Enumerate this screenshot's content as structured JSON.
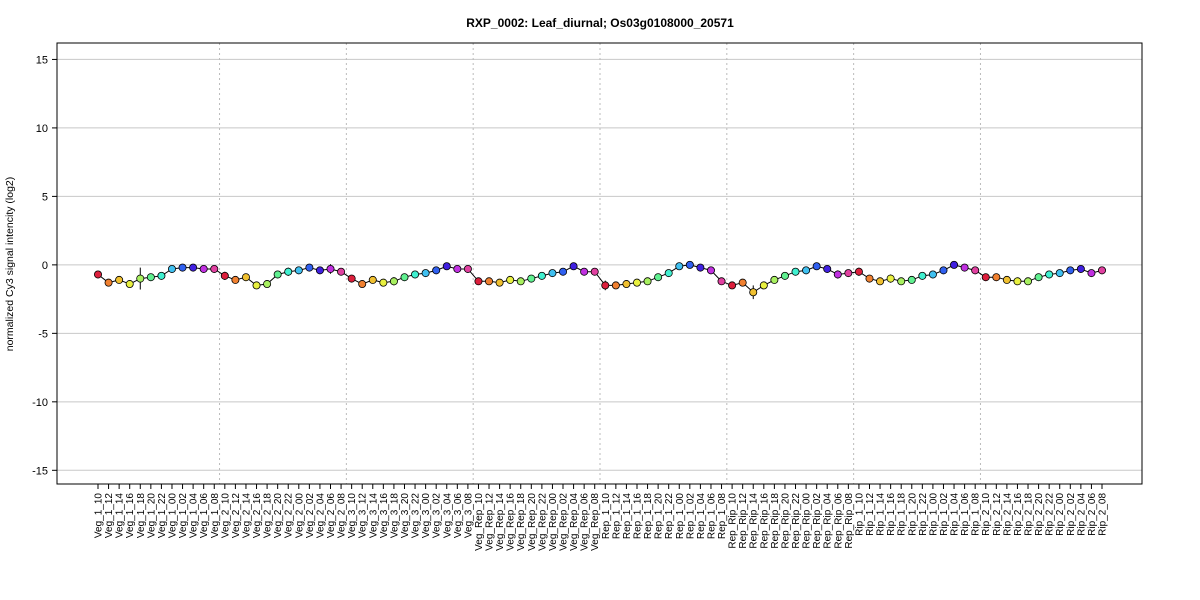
{
  "chart_data": {
    "type": "line",
    "title": "RXP_0002: Leaf_diurnal; Os03g0108000_20571",
    "ylabel": "normalized Cy3 signal intencity (log2)",
    "xlabel": "",
    "ylim": [
      -16,
      16.2
    ],
    "yticks": [
      -15,
      -10,
      -5,
      0,
      5,
      10,
      15
    ],
    "grid": true,
    "legend": "none",
    "categories": [
      "Veg_1_10",
      "Veg_1_12",
      "Veg_1_14",
      "Veg_1_16",
      "Veg_1_18",
      "Veg_1_20",
      "Veg_1_22",
      "Veg_1_00",
      "Veg_1_02",
      "Veg_1_04",
      "Veg_1_06",
      "Veg_1_08",
      "Veg_2_10",
      "Veg_2_12",
      "Veg_2_14",
      "Veg_2_16",
      "Veg_2_18",
      "Veg_2_20",
      "Veg_2_22",
      "Veg_2_00",
      "Veg_2_02",
      "Veg_2_04",
      "Veg_2_06",
      "Veg_2_08",
      "Veg_3_10",
      "Veg_3_12",
      "Veg_3_14",
      "Veg_3_16",
      "Veg_3_18",
      "Veg_3_20",
      "Veg_3_22",
      "Veg_3_00",
      "Veg_3_02",
      "Veg_3_04",
      "Veg_3_06",
      "Veg_3_08",
      "Veg_Rep_10",
      "Veg_Rep_12",
      "Veg_Rep_14",
      "Veg_Rep_16",
      "Veg_Rep_18",
      "Veg_Rep_20",
      "Veg_Rep_22",
      "Veg_Rep_00",
      "Veg_Rep_02",
      "Veg_Rep_04",
      "Veg_Rep_06",
      "Veg_Rep_08",
      "Rep_1_10",
      "Rep_1_12",
      "Rep_1_14",
      "Rep_1_16",
      "Rep_1_18",
      "Rep_1_20",
      "Rep_1_22",
      "Rep_1_00",
      "Rep_1_02",
      "Rep_1_04",
      "Rep_1_06",
      "Rep_1_08",
      "Rep_Rip_10",
      "Rep_Rip_12",
      "Rep_Rip_14",
      "Rep_Rip_16",
      "Rep_Rip_18",
      "Rep_Rip_20",
      "Rep_Rip_22",
      "Rep_Rip_00",
      "Rep_Rip_02",
      "Rep_Rip_04",
      "Rep_Rip_06",
      "Rep_Rip_08",
      "Rip_1_10",
      "Rip_1_12",
      "Rip_1_14",
      "Rip_1_16",
      "Rip_1_18",
      "Rip_1_20",
      "Rip_1_22",
      "Rip_1_00",
      "Rip_1_02",
      "Rip_1_04",
      "Rip_1_06",
      "Rip_1_08",
      "Rip_2_10",
      "Rip_2_12",
      "Rip_2_14",
      "Rip_2_16",
      "Rip_2_18",
      "Rip_2_20",
      "Rip_2_22",
      "Rip_2_00",
      "Rip_2_02",
      "Rip_2_04",
      "Rip_2_06",
      "Rip_2_08"
    ],
    "values": [
      -0.7,
      -1.3,
      -1.1,
      -1.4,
      -1.0,
      -0.9,
      -0.8,
      -0.3,
      -0.2,
      -0.2,
      -0.3,
      -0.3,
      -0.8,
      -1.1,
      -0.9,
      -1.5,
      -1.4,
      -0.7,
      -0.5,
      -0.4,
      -0.2,
      -0.4,
      -0.3,
      -0.5,
      -1.0,
      -1.4,
      -1.1,
      -1.3,
      -1.2,
      -0.9,
      -0.7,
      -0.6,
      -0.4,
      -0.1,
      -0.3,
      -0.3,
      -1.2,
      -1.2,
      -1.3,
      -1.1,
      -1.2,
      -1.0,
      -0.8,
      -0.6,
      -0.5,
      -0.1,
      -0.5,
      -0.5,
      -1.5,
      -1.5,
      -1.4,
      -1.3,
      -1.2,
      -0.9,
      -0.6,
      -0.1,
      0.0,
      -0.2,
      -0.4,
      -1.2,
      -1.5,
      -1.3,
      -2.0,
      -1.5,
      -1.1,
      -0.8,
      -0.5,
      -0.4,
      -0.1,
      -0.3,
      -0.7,
      -0.6,
      -0.5,
      -1.0,
      -1.2,
      -1.0,
      -1.2,
      -1.1,
      -0.8,
      -0.7,
      -0.4,
      0.0,
      -0.2,
      -0.4,
      -0.9,
      -0.9,
      -1.1,
      -1.2,
      -1.2,
      -0.9,
      -0.7,
      -0.6,
      -0.4,
      -0.3,
      -0.6,
      -0.4
    ],
    "errors": [
      0.1,
      0.15,
      0.1,
      0.2,
      0.8,
      0.15,
      0.1,
      0.1,
      0.1,
      0.1,
      0.1,
      0.1,
      0.3,
      0.15,
      0.2,
      0.1,
      0.15,
      0.15,
      0.3,
      0.2,
      0.15,
      0.2,
      0.35,
      0.2,
      0.2,
      0.15,
      0.2,
      0.2,
      0.3,
      0.2,
      0.1,
      0.15,
      0.15,
      0.15,
      0.1,
      0.1,
      0.15,
      0.15,
      0.1,
      0.1,
      0.15,
      0.15,
      0.15,
      0.1,
      0.1,
      0.1,
      0.1,
      0.1,
      0.35,
      0.2,
      0.15,
      0.2,
      0.2,
      0.15,
      0.15,
      0.1,
      0.1,
      0.15,
      0.15,
      0.15,
      0.15,
      0.15,
      0.5,
      0.25,
      0.15,
      0.15,
      0.15,
      0.15,
      0.1,
      0.1,
      0.3,
      0.25,
      0.3,
      0.25,
      0.2,
      0.3,
      0.2,
      0.15,
      0.15,
      0.15,
      0.15,
      0.1,
      0.1,
      0.15,
      0.15,
      0.15,
      0.15,
      0.15,
      0.15,
      0.15,
      0.15,
      0.15,
      0.15,
      0.15,
      0.15,
      0.15
    ],
    "point_colors": [
      "#dc1f3c",
      "#f08030",
      "#f0c030",
      "#e8f040",
      "#a8f060",
      "#60f090",
      "#40f0d0",
      "#40c0f0",
      "#3060f0",
      "#4020e0",
      "#c030e0",
      "#e040a0"
    ],
    "group_separators_after_index": [
      11,
      23,
      35,
      47,
      59,
      71,
      83
    ]
  }
}
